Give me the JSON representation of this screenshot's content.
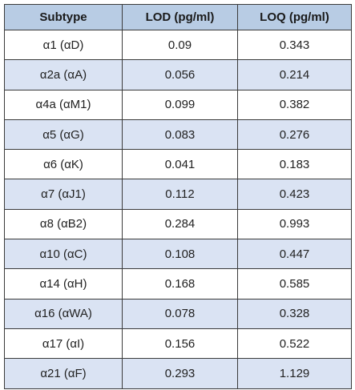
{
  "table": {
    "header": [
      "Subtype",
      "LOD (pg/ml)",
      "LOQ (pg/ml)"
    ],
    "rows": [
      [
        "α1 (αD)",
        "0.09",
        "0.343"
      ],
      [
        "α2a (αA)",
        "0.056",
        "0.214"
      ],
      [
        "α4a (αM1)",
        "0.099",
        "0.382"
      ],
      [
        "α5 (αG)",
        "0.083",
        "0.276"
      ],
      [
        "α6 (αK)",
        "0.041",
        "0.183"
      ],
      [
        "α7 (αJ1)",
        "0.112",
        "0.423"
      ],
      [
        "α8 (αB2)",
        "0.284",
        "0.993"
      ],
      [
        "α10 (αC)",
        "0.108",
        "0.447"
      ],
      [
        "α14 (αH)",
        "0.168",
        "0.585"
      ],
      [
        "α16 (αWA)",
        "0.078",
        "0.328"
      ],
      [
        "α17 (αI)",
        "0.156",
        "0.522"
      ],
      [
        "α21 (αF)",
        "0.293",
        "1.129"
      ]
    ]
  }
}
